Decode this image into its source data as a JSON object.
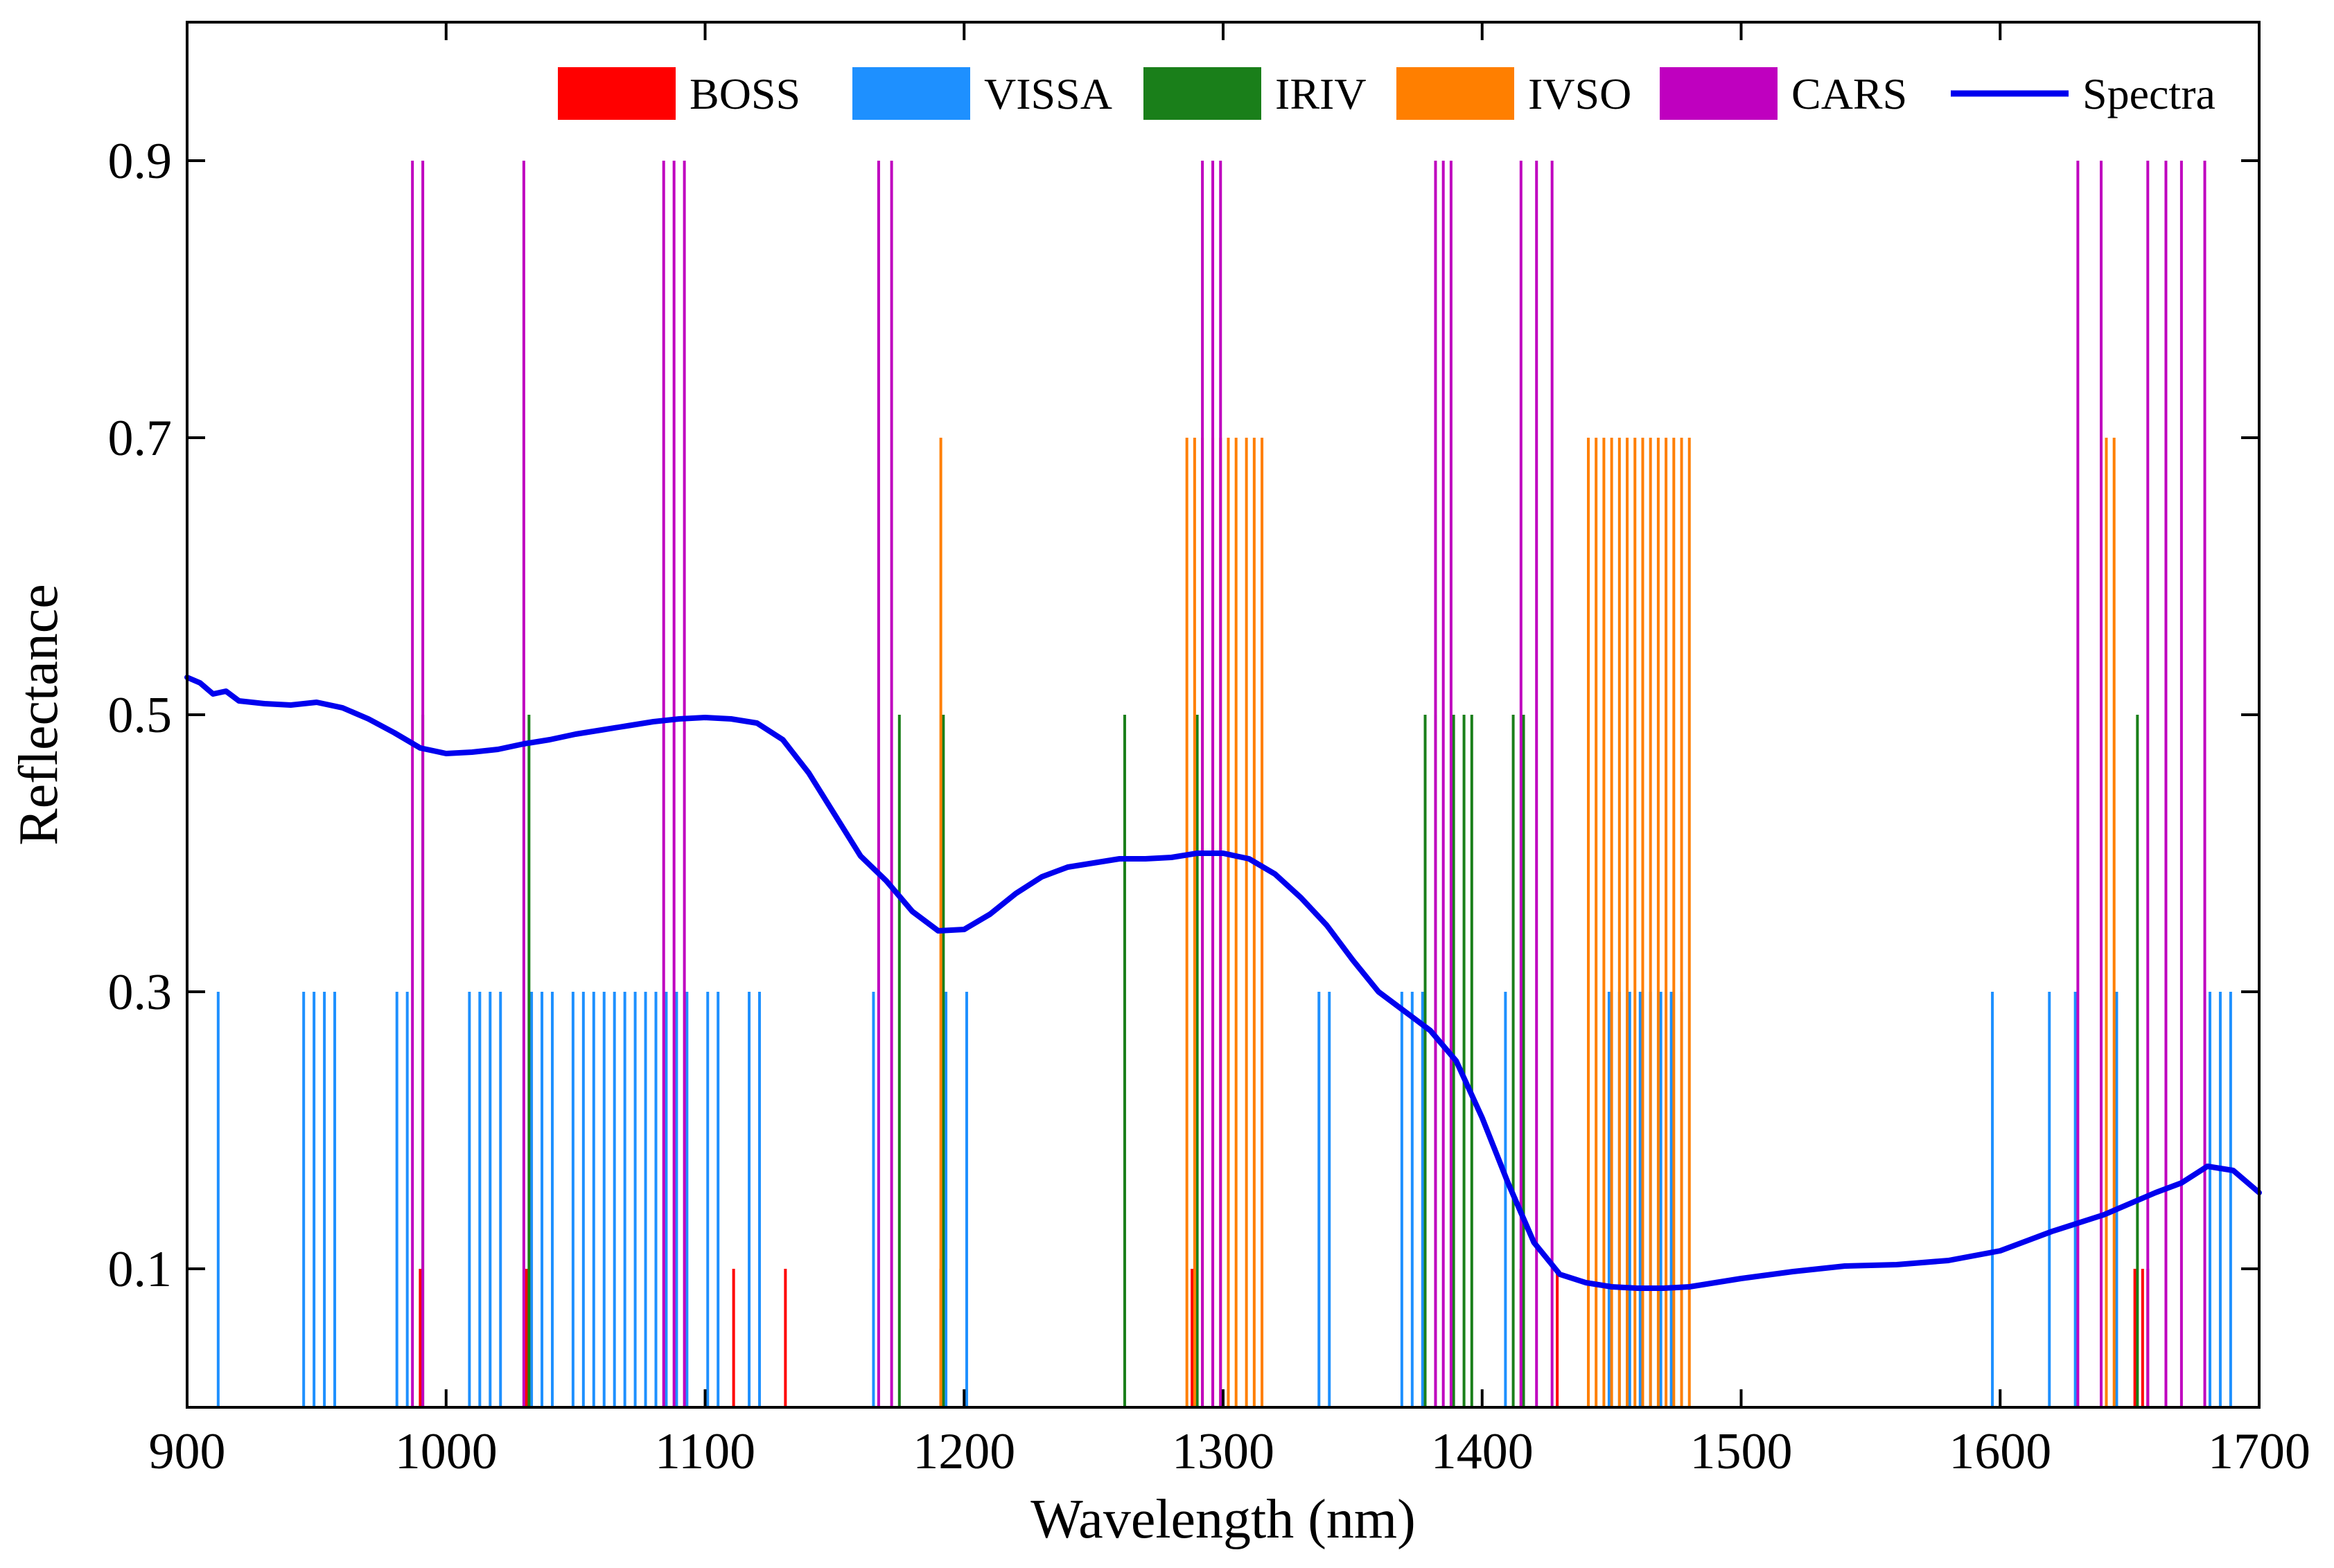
{
  "chart_data": {
    "type": "line",
    "title": "",
    "xlabel": "Wavelength (nm)",
    "ylabel": "Reflectance",
    "xlim": [
      900,
      1700
    ],
    "ylim": [
      0,
      1.0
    ],
    "x_ticks": [
      "900",
      "1000",
      "1100",
      "1200",
      "1300",
      "1400",
      "1500",
      "1600",
      "1700"
    ],
    "x_tick_values": [
      900,
      1000,
      1100,
      1200,
      1300,
      1400,
      1500,
      1600,
      1700
    ],
    "y_ticks": [
      "0.1",
      "0.3",
      "0.5",
      "0.7",
      "0.9"
    ],
    "y_tick_values": [
      0.1,
      0.3,
      0.5,
      0.7,
      0.9
    ],
    "grid": false,
    "legend_position": "top-right",
    "legend": [
      {
        "name": "BOSS",
        "color": "#ff0000",
        "kind": "bar"
      },
      {
        "name": "VISSA",
        "color": "#1e90ff",
        "kind": "bar"
      },
      {
        "name": "IRIV",
        "color": "#1a7f1a",
        "kind": "bar"
      },
      {
        "name": "IVSO",
        "color": "#ff7f00",
        "kind": "bar"
      },
      {
        "name": "CARS",
        "color": "#bf00bf",
        "kind": "bar"
      },
      {
        "name": "Spectra",
        "color": "#0000ee",
        "kind": "line"
      }
    ],
    "selected_wavelengths": [
      {
        "name": "BOSS",
        "color": "#ff0000",
        "height": 0.1,
        "x": [
          990,
          1031,
          1111,
          1131,
          1191,
          1288,
          1415,
          1429,
          1652,
          1655,
          1657
        ]
      },
      {
        "name": "VISSA",
        "color": "#1e90ff",
        "height": 0.3,
        "x": [
          912,
          945,
          949,
          953,
          957,
          981,
          985,
          1009,
          1013,
          1017,
          1021,
          1033,
          1037,
          1041,
          1049,
          1053,
          1057,
          1061,
          1065,
          1069,
          1073,
          1077,
          1081,
          1085,
          1089,
          1093,
          1101,
          1105,
          1117,
          1121,
          1165,
          1193,
          1201,
          1337,
          1341,
          1369,
          1373,
          1377,
          1409,
          1449,
          1453,
          1457,
          1461,
          1465,
          1469,
          1473,
          1477,
          1597,
          1619,
          1629,
          1639,
          1645,
          1681,
          1685,
          1689
        ]
      },
      {
        "name": "IRIV",
        "color": "#1a7f1a",
        "height": 0.5,
        "x": [
          991,
          1032,
          1175,
          1192,
          1262,
          1290,
          1378,
          1382,
          1389,
          1393,
          1396,
          1412,
          1416,
          1653
        ]
      },
      {
        "name": "IVSO",
        "color": "#ff7f00",
        "height": 0.7,
        "x": [
          1191,
          1286,
          1289,
          1292,
          1296,
          1299,
          1302,
          1305,
          1309,
          1312,
          1315,
          1441,
          1444,
          1447,
          1450,
          1453,
          1456,
          1459,
          1462,
          1465,
          1468,
          1471,
          1474,
          1477,
          1480,
          1641,
          1644
        ]
      },
      {
        "name": "CARS",
        "color": "#bf00bf",
        "height": 0.9,
        "x": [
          987,
          991,
          1030,
          1084,
          1088,
          1092,
          1167,
          1172,
          1292,
          1296,
          1299,
          1382,
          1385,
          1388,
          1415,
          1421,
          1427,
          1630,
          1639,
          1657,
          1664,
          1670,
          1679
        ]
      }
    ],
    "series": [
      {
        "name": "Spectra",
        "color": "#0000ee",
        "x": [
          900,
          905,
          910,
          915,
          920,
          930,
          940,
          950,
          960,
          970,
          980,
          990,
          1000,
          1010,
          1020,
          1030,
          1040,
          1050,
          1060,
          1070,
          1080,
          1090,
          1100,
          1110,
          1120,
          1130,
          1140,
          1150,
          1160,
          1170,
          1180,
          1190,
          1200,
          1210,
          1220,
          1230,
          1240,
          1250,
          1260,
          1270,
          1280,
          1290,
          1300,
          1310,
          1320,
          1330,
          1340,
          1350,
          1360,
          1370,
          1380,
          1390,
          1400,
          1410,
          1420,
          1430,
          1440,
          1450,
          1460,
          1470,
          1480,
          1490,
          1500,
          1520,
          1540,
          1560,
          1580,
          1600,
          1620,
          1640,
          1660,
          1670,
          1680,
          1690,
          1700
        ],
        "y": [
          0.527,
          0.523,
          0.515,
          0.517,
          0.51,
          0.508,
          0.507,
          0.509,
          0.505,
          0.497,
          0.487,
          0.476,
          0.472,
          0.473,
          0.475,
          0.479,
          0.482,
          0.486,
          0.489,
          0.492,
          0.495,
          0.497,
          0.498,
          0.497,
          0.494,
          0.482,
          0.458,
          0.428,
          0.398,
          0.38,
          0.358,
          0.344,
          0.345,
          0.356,
          0.371,
          0.383,
          0.39,
          0.393,
          0.396,
          0.396,
          0.397,
          0.4,
          0.4,
          0.396,
          0.385,
          0.368,
          0.348,
          0.323,
          0.3,
          0.286,
          0.272,
          0.25,
          0.209,
          0.162,
          0.119,
          0.096,
          0.09,
          0.087,
          0.086,
          0.086,
          0.087,
          0.09,
          0.093,
          0.098,
          0.102,
          0.103,
          0.106,
          0.113,
          0.127,
          0.139,
          0.155,
          0.162,
          0.174,
          0.171,
          0.155
        ]
      }
    ]
  }
}
